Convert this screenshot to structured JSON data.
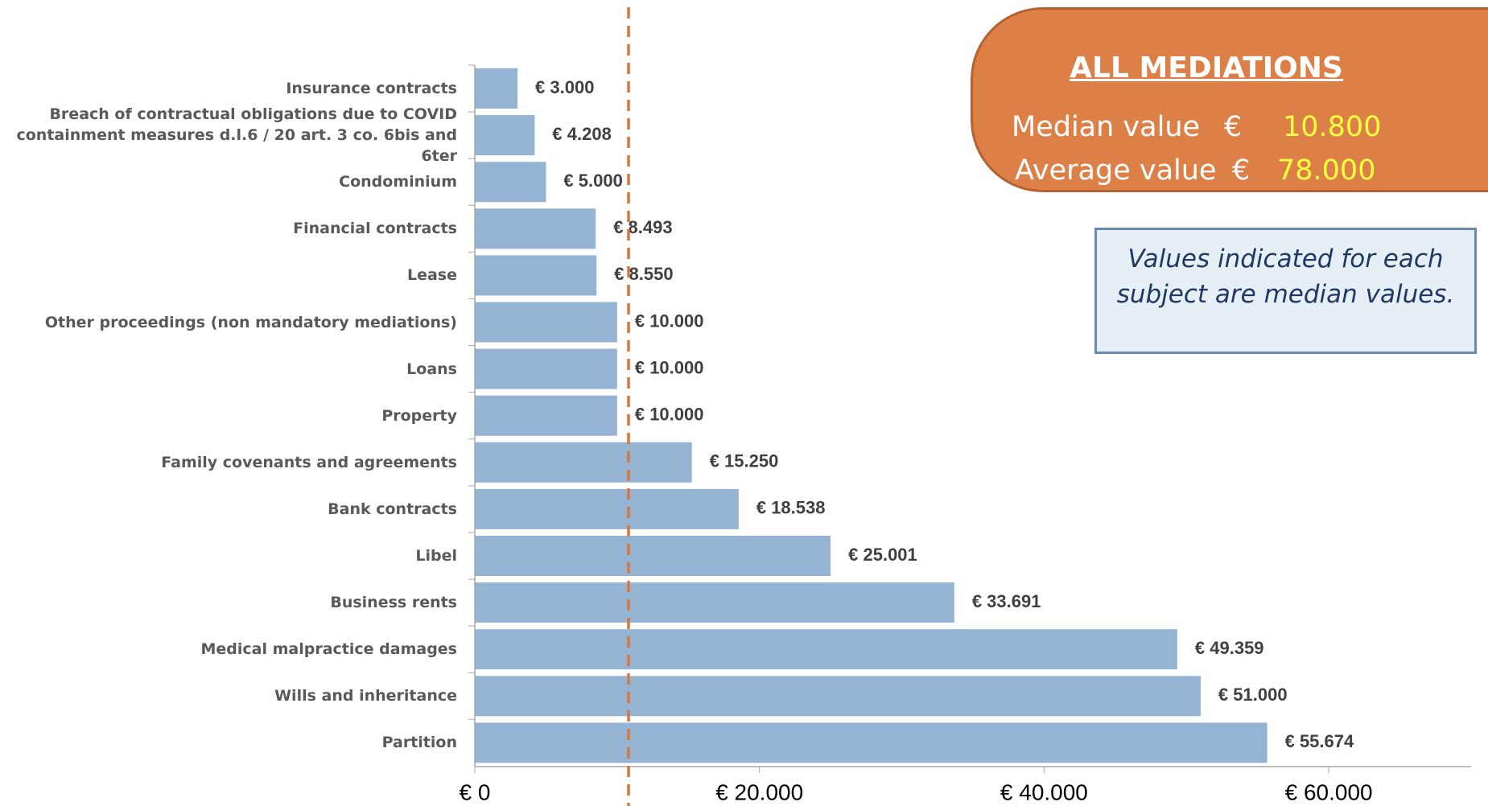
{
  "chart_data": {
    "type": "bar",
    "orientation": "horizontal",
    "categories": [
      "Insurance contracts",
      "Breach of contractual obligations due to COVID\ncontainment measures d.l.6 / 20 art. 3 co. 6bis and 6ter",
      "Condominium",
      "Financial contracts",
      "Lease",
      "Other proceedings (non mandatory mediations)",
      "Loans",
      "Property",
      "Family covenants and agreements",
      "Bank contracts",
      "Libel",
      "Business rents",
      "Medical malpractice damages",
      "Wills  and inheritance",
      "Partition"
    ],
    "values": [
      3000,
      4208,
      5000,
      8493,
      8550,
      10000,
      10000,
      10000,
      15250,
      18538,
      25001,
      33691,
      49359,
      51000,
      55674
    ],
    "value_labels": [
      "€ 3.000",
      "€ 4.208",
      "€ 5.000",
      "€ 8.493",
      "€ 8.550",
      "€ 10.000",
      "€ 10.000",
      "€ 10.000",
      "€ 15.250",
      "€ 18.538",
      "€ 25.001",
      "€ 33.691",
      "€ 49.359",
      "€ 51.000",
      "€ 55.674"
    ],
    "color": "#95b3d2",
    "xlim": [
      0,
      70000
    ],
    "xticks": [
      {
        "value": 0,
        "label": "€ 0"
      },
      {
        "value": 20000,
        "label": "€ 20.000"
      },
      {
        "value": 40000,
        "label": "€ 40.000"
      },
      {
        "value": 60000,
        "label": "€ 60.000"
      }
    ],
    "reference_line": {
      "value": 10800,
      "label": "10.800",
      "color": "#d9763a"
    }
  },
  "summary_box": {
    "title": "ALL MEDIATIONS",
    "median_label": "Median value",
    "average_label": "Average value",
    "currency": "€",
    "average_value": "78.000"
  },
  "note": "Values indicated for each subject are median values."
}
